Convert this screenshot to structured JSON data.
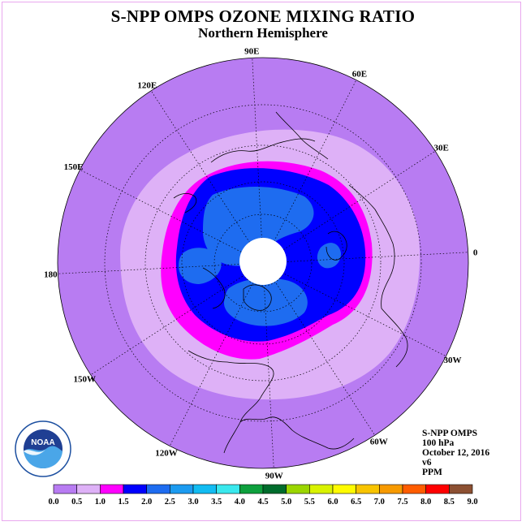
{
  "title": "S-NPP OMPS OZONE MIXING RATIO",
  "subtitle": "Northern Hemisphere",
  "longitude_labels": [
    {
      "text": "90E",
      "lon": 90
    },
    {
      "text": "60E",
      "lon": 60
    },
    {
      "text": "30E",
      "lon": 30
    },
    {
      "text": "0",
      "lon": 0
    },
    {
      "text": "30W",
      "lon": -30
    },
    {
      "text": "60W",
      "lon": -60
    },
    {
      "text": "90W",
      "lon": -90
    },
    {
      "text": "120W",
      "lon": -120
    },
    {
      "text": "150W",
      "lon": -150
    },
    {
      "text": "180",
      "lon": 180
    },
    {
      "text": "150E",
      "lon": 150
    },
    {
      "text": "120E",
      "lon": 120
    }
  ],
  "info": {
    "instrument": "S-NPP OMPS",
    "level": "100 hPa",
    "date": "October 12, 2016",
    "version": "v6",
    "units": "PPM"
  },
  "logo_text": "NOAA",
  "colorbar": {
    "ticks": [
      "0.0",
      "0.5",
      "1.0",
      "1.5",
      "2.0",
      "2.5",
      "3.0",
      "3.5",
      "4.0",
      "4.5",
      "5.0",
      "5.5",
      "6.0",
      "6.5",
      "7.0",
      "7.5",
      "8.0",
      "8.5",
      "9.0"
    ],
    "colors": [
      "#b87cf2",
      "#deb1f7",
      "#ff00ff",
      "#0000ff",
      "#1e6cf0",
      "#1c9bf0",
      "#12bcf2",
      "#3ae8ed",
      "#0ea03d",
      "#006c2c",
      "#9bd600",
      "#d9f200",
      "#fffb00",
      "#f8c400",
      "#f79a00",
      "#ff5d00",
      "#ff0000",
      "#8c5032"
    ]
  },
  "map": {
    "projection": "north-polar-stereographic",
    "background_color": "#b87cf2",
    "no_data_color": "#ffffff"
  }
}
